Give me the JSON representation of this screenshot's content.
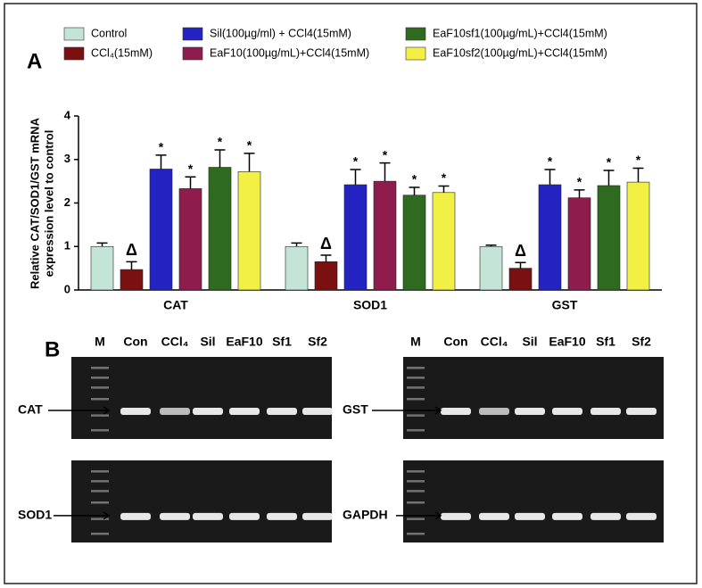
{
  "chart_data": {
    "type": "bar",
    "label": "A",
    "ylabel": [
      "Relative CAT/SOD1/GST mRNA",
      "expression level to control"
    ],
    "categories": [
      "CAT",
      "SOD1",
      "GST"
    ],
    "series": [
      {
        "name": "Control",
        "color": "#c5e4d8",
        "values": [
          1.0,
          1.0,
          1.0
        ],
        "errors": [
          0.08,
          0.08,
          0.03
        ]
      },
      {
        "name": "CCl₄(15mM)",
        "color": "#7a1010",
        "values": [
          0.47,
          0.65,
          0.5
        ],
        "errors": [
          0.18,
          0.15,
          0.13
        ],
        "marker": "Δ"
      },
      {
        "name": "Sil(100µg/ml) + CCl4(15mM)",
        "color": "#2323c2",
        "values": [
          2.78,
          2.42,
          2.42
        ],
        "errors": [
          0.32,
          0.35,
          0.35
        ],
        "marker": "*"
      },
      {
        "name": "EaF10(100µg/mL)+CCl4(15mM)",
        "color": "#8e1c4c",
        "values": [
          2.33,
          2.5,
          2.12
        ],
        "errors": [
          0.27,
          0.42,
          0.18
        ],
        "marker": "*"
      },
      {
        "name": "EaF10sf1(100µg/mL)+CCl4(15mM)",
        "color": "#2e6b1f",
        "values": [
          2.82,
          2.18,
          2.4
        ],
        "errors": [
          0.4,
          0.18,
          0.35
        ],
        "marker": "*"
      },
      {
        "name": "EaF10sf2(100µg/mL)+CCl4(15mM)",
        "color": "#f2f044",
        "values": [
          2.72,
          2.24,
          2.48
        ],
        "errors": [
          0.42,
          0.15,
          0.32
        ],
        "marker": "*"
      }
    ],
    "ylim": [
      0,
      4
    ],
    "yticks": [
      0,
      1,
      2,
      3,
      4
    ]
  },
  "gels": {
    "label": "B",
    "groups": [
      {
        "lanes": [
          "M",
          "Con",
          "CCl₄",
          "Sil",
          "EaF10",
          "Sf1",
          "Sf2"
        ],
        "blots": [
          "CAT",
          "SOD1"
        ]
      },
      {
        "lanes": [
          "M",
          "Con",
          "CCl₄",
          "Sil",
          "EaF10",
          "Sf1",
          "Sf2"
        ],
        "blots": [
          "GST",
          "GAPDH"
        ]
      }
    ]
  }
}
